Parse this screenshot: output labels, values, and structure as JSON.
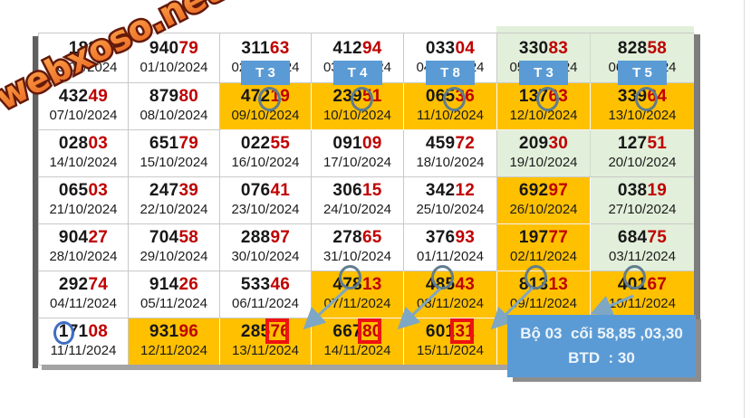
{
  "watermark": {
    "text": "webxoso.net"
  },
  "colors": {
    "orange": "#ffc000",
    "green": "#e2efda",
    "blue": "#5b9bd5",
    "digit_red": "#bf0000",
    "ring": "#5f7d8e",
    "ring_blue": "#3f6ec2",
    "arrow": "#7da7c4",
    "redbox": "#ee1111"
  },
  "note_box": {
    "line1": "Bộ 03  cối 58,85 ,03,30",
    "line2": "BTD  : 30"
  },
  "table": {
    "rows": [
      {
        "cells": [
          {
            "black": "183",
            "red": "",
            "date": "30/09/2024",
            "bg": "white"
          },
          {
            "black": "940",
            "red": "79",
            "date": "01/10/2024",
            "bg": "white"
          },
          {
            "black": "311",
            "red": "63",
            "date": "02/10/2024",
            "bg": "white",
            "tlabel": "T 3"
          },
          {
            "black": "412",
            "red": "94",
            "date": "03/10/2024",
            "bg": "white",
            "tlabel": "T 4"
          },
          {
            "black": "033",
            "red": "04",
            "date": "04/10/2024",
            "bg": "white",
            "tlabel": "T 8"
          },
          {
            "black": "330",
            "red": "83",
            "date": "05/10/2024",
            "bg": "green",
            "tlabel": "T 3"
          },
          {
            "black": "828",
            "red": "58",
            "date": "06/10/2024",
            "bg": "green",
            "tlabel": "T 5"
          }
        ]
      },
      {
        "cells": [
          {
            "black": "432",
            "red": "49",
            "date": "07/10/2024",
            "bg": "white"
          },
          {
            "black": "879",
            "red": "80",
            "date": "08/10/2024",
            "bg": "white"
          },
          {
            "black": "472",
            "red": "19",
            "date": "09/10/2024",
            "bg": "orange",
            "circle": "mid"
          },
          {
            "black": "239",
            "red": "51",
            "date": "10/10/2024",
            "bg": "orange",
            "circle": "mid"
          },
          {
            "black": "065",
            "red": "36",
            "date": "11/10/2024",
            "bg": "orange",
            "circle": "mid"
          },
          {
            "black": "137",
            "red": "63",
            "date": "12/10/2024",
            "bg": "orange",
            "circle": "mid"
          },
          {
            "black": "339",
            "red": "64",
            "date": "13/10/2024",
            "bg": "orange",
            "circle": "mid"
          }
        ]
      },
      {
        "cells": [
          {
            "black": "028",
            "red": "03",
            "date": "14/10/2024",
            "bg": "white"
          },
          {
            "black": "651",
            "red": "79",
            "date": "15/10/2024",
            "bg": "white"
          },
          {
            "black": "022",
            "red": "55",
            "date": "16/10/2024",
            "bg": "white"
          },
          {
            "black": "091",
            "red": "09",
            "date": "17/10/2024",
            "bg": "white"
          },
          {
            "black": "459",
            "red": "72",
            "date": "18/10/2024",
            "bg": "white"
          },
          {
            "black": "209",
            "red": "30",
            "date": "19/10/2024",
            "bg": "green"
          },
          {
            "black": "127",
            "red": "51",
            "date": "20/10/2024",
            "bg": "green"
          }
        ]
      },
      {
        "cells": [
          {
            "black": "065",
            "red": "03",
            "date": "21/10/2024",
            "bg": "white"
          },
          {
            "black": "247",
            "red": "39",
            "date": "22/10/2024",
            "bg": "white"
          },
          {
            "black": "076",
            "red": "41",
            "date": "23/10/2024",
            "bg": "white"
          },
          {
            "black": "306",
            "red": "15",
            "date": "24/10/2024",
            "bg": "white"
          },
          {
            "black": "342",
            "red": "12",
            "date": "25/10/2024",
            "bg": "white"
          },
          {
            "black": "692",
            "red": "97",
            "date": "26/10/2024",
            "bg": "orange"
          },
          {
            "black": "038",
            "red": "19",
            "date": "27/10/2024",
            "bg": "green"
          }
        ]
      },
      {
        "cells": [
          {
            "black": "904",
            "red": "27",
            "date": "28/10/2024",
            "bg": "white"
          },
          {
            "black": "704",
            "red": "58",
            "date": "29/10/2024",
            "bg": "white"
          },
          {
            "black": "288",
            "red": "97",
            "date": "30/10/2024",
            "bg": "white"
          },
          {
            "black": "278",
            "red": "65",
            "date": "31/10/2024",
            "bg": "white"
          },
          {
            "black": "376",
            "red": "93",
            "date": "01/11/2024",
            "bg": "white"
          },
          {
            "black": "197",
            "red": "77",
            "date": "02/11/2024",
            "bg": "orange"
          },
          {
            "black": "684",
            "red": "75",
            "date": "03/11/2024",
            "bg": "green"
          }
        ]
      },
      {
        "cells": [
          {
            "black": "292",
            "red": "74",
            "date": "04/11/2024",
            "bg": "white"
          },
          {
            "black": "914",
            "red": "26",
            "date": "05/11/2024",
            "bg": "white"
          },
          {
            "black": "533",
            "red": "46",
            "date": "06/11/2024",
            "bg": "white"
          },
          {
            "black": "478",
            "red": "13",
            "date": "07/11/2024",
            "bg": "orange",
            "circle": "top"
          },
          {
            "black": "485",
            "red": "43",
            "date": "08/11/2024",
            "bg": "orange",
            "circle": "top"
          },
          {
            "black": "813",
            "red": "13",
            "date": "09/11/2024",
            "bg": "orange",
            "circle": "top"
          },
          {
            "black": "401",
            "red": "67",
            "date": "10/11/2024",
            "bg": "orange",
            "circle": "top"
          }
        ]
      },
      {
        "cells": [
          {
            "black": "171",
            "red": "08",
            "date": "11/11/2024",
            "bg": "white",
            "circle": "blue"
          },
          {
            "black": "931",
            "red": "96",
            "date": "12/11/2024",
            "bg": "orange"
          },
          {
            "black": "285",
            "red": "76",
            "date": "13/11/2024",
            "bg": "orange",
            "redbox": true
          },
          {
            "black": "667",
            "red": "80",
            "date": "14/11/2024",
            "bg": "orange",
            "redbox": true
          },
          {
            "black": "601",
            "red": "31",
            "date": "15/11/2024",
            "bg": "orange",
            "redbox": true
          },
          {
            "black": "",
            "red": "",
            "date": "",
            "bg": "orange",
            "covered": true
          },
          {
            "black": "",
            "red": "",
            "date": "",
            "bg": "orange",
            "covered": true
          }
        ]
      }
    ]
  }
}
